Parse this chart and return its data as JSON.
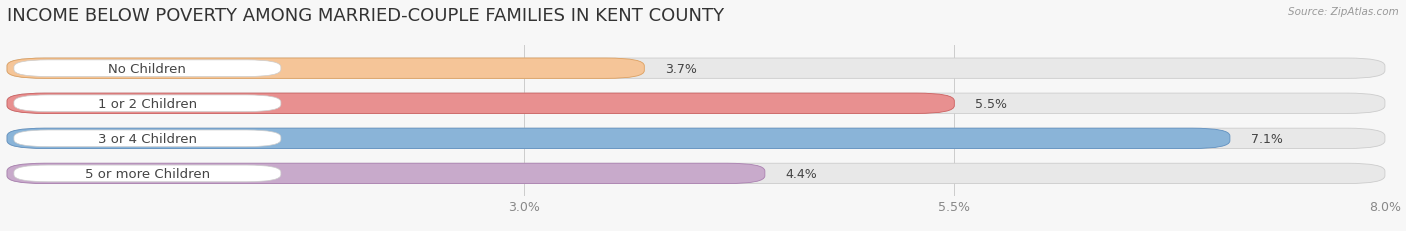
{
  "title": "INCOME BELOW POVERTY AMONG MARRIED-COUPLE FAMILIES IN KENT COUNTY",
  "source": "Source: ZipAtlas.com",
  "categories": [
    "No Children",
    "1 or 2 Children",
    "3 or 4 Children",
    "5 or more Children"
  ],
  "values": [
    3.7,
    5.5,
    7.1,
    4.4
  ],
  "bar_colors": [
    "#f5c598",
    "#e89090",
    "#8ab4d8",
    "#c8aacb"
  ],
  "bar_edge_colors": [
    "#dda060",
    "#cc6060",
    "#6090c0",
    "#aa80b0"
  ],
  "xlim_data": [
    0,
    8.0
  ],
  "xticks": [
    3.0,
    5.5,
    8.0
  ],
  "xtick_labels": [
    "3.0%",
    "5.5%",
    "8.0%"
  ],
  "title_fontsize": 13,
  "tick_fontsize": 9,
  "label_fontsize": 9.5,
  "value_fontsize": 9,
  "background_color": "#f7f7f7",
  "bar_height": 0.58,
  "bar_bg_color": "#e8e8e8",
  "bar_bg_edge_color": "#cccccc",
  "label_bg_color": "#ffffff",
  "label_text_color": "#444444",
  "value_text_color": "#444444",
  "tick_color": "#888888",
  "gridline_color": "#cccccc"
}
